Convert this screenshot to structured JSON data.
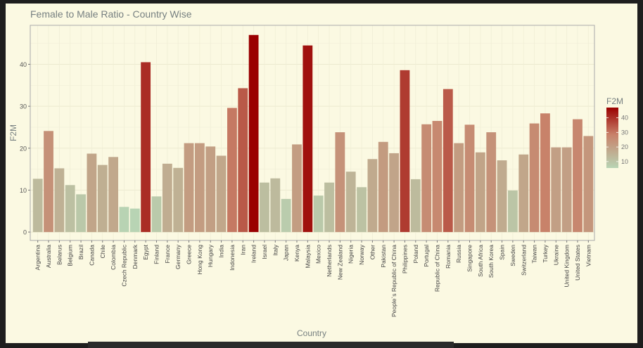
{
  "chart_data": {
    "type": "bar",
    "title": "Female to Male Ratio - Country Wise",
    "xlabel": "Country",
    "ylabel": "F2M",
    "ylim": [
      -2,
      49.3
    ],
    "yticks": [
      0,
      10,
      20,
      30,
      40
    ],
    "grid": true,
    "legend": {
      "title": "F2M",
      "placement": "right",
      "ticks": [
        10,
        20,
        30,
        40
      ],
      "range": [
        5.6,
        47
      ]
    },
    "colors": {
      "low": "#b8d4b4",
      "mid": "#c8826a",
      "high": "#9a0000",
      "background": "#fbf9e2",
      "grid": "#ece9cf",
      "axis": "#999999",
      "text": "#555555",
      "title": "#778081"
    },
    "categories": [
      "Argentina",
      "Australia",
      "Belarus",
      "Belgium",
      "Brazil",
      "Canada",
      "Chile",
      "Colombia",
      "Czech Republic",
      "Denmark",
      "Egypt",
      "Finland",
      "France",
      "Germany",
      "Greece",
      "Hong Kong",
      "Hungary",
      "India",
      "Indonesia",
      "Iran",
      "Ireland",
      "Israel",
      "Italy",
      "Japan",
      "Kenya",
      "Malaysia",
      "Mexico",
      "Netherlands",
      "New Zealand",
      "Nigeria",
      "Norway",
      "Other",
      "Pakistan",
      "People`s Republic of China",
      "Philippines",
      "Poland",
      "Portugal",
      "Republic of China",
      "Romania",
      "Russia",
      "Singapore",
      "South Africa",
      "South Korea",
      "Spain",
      "Sweden",
      "Switzerland",
      "Taiwan",
      "Turkey",
      "Ukraine",
      "United Kingdom",
      "United States",
      "Vietnam"
    ],
    "values": [
      12.7,
      24.1,
      15.2,
      11.2,
      9.0,
      18.7,
      16.0,
      17.9,
      6.0,
      5.6,
      40.5,
      8.5,
      16.3,
      15.3,
      21.2,
      21.2,
      20.4,
      18.2,
      29.6,
      34.3,
      47.0,
      11.8,
      12.8,
      7.9,
      20.9,
      44.5,
      8.7,
      11.8,
      23.8,
      14.4,
      10.7,
      17.4,
      21.5,
      18.8,
      38.6,
      12.6,
      25.7,
      26.5,
      34.1,
      21.2,
      25.6,
      19.0,
      23.8,
      17.1,
      9.9,
      18.5,
      25.9,
      28.3,
      20.2,
      20.2,
      26.9,
      22.9
    ]
  }
}
